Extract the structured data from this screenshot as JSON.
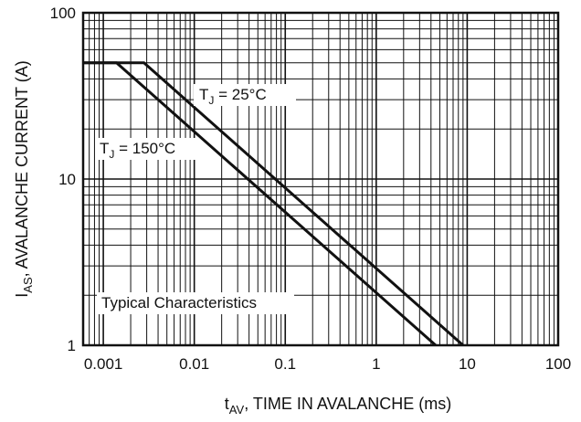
{
  "chart_data": {
    "type": "line",
    "xscale": "log",
    "yscale": "log",
    "xlim": [
      0.0006,
      100
    ],
    "ylim": [
      1,
      100
    ],
    "grid": true,
    "xlabel": {
      "main": "t",
      "sub": "AV",
      "rest": ", TIME IN AVALANCHE (ms)"
    },
    "ylabel": {
      "main": "I",
      "sub": "AS",
      "rest": ", AVALANCHE CURRENT (A)"
    },
    "xticks": [
      {
        "value": 0.001,
        "label": "0.001"
      },
      {
        "value": 0.01,
        "label": "0.01"
      },
      {
        "value": 0.1,
        "label": "0.1"
      },
      {
        "value": 1,
        "label": "1"
      },
      {
        "value": 10,
        "label": "10"
      },
      {
        "value": 100,
        "label": "100"
      }
    ],
    "yticks": [
      {
        "value": 1,
        "label": "1"
      },
      {
        "value": 10,
        "label": "10"
      },
      {
        "value": 100,
        "label": "100"
      }
    ],
    "series": [
      {
        "name": "TJ = 25°C",
        "x": [
          0.0006,
          0.0028,
          9
        ],
        "y": [
          50,
          50,
          1
        ]
      },
      {
        "name": "TJ = 150°C",
        "x": [
          0.0006,
          0.0014,
          4.5
        ],
        "y": [
          50,
          50,
          1
        ]
      }
    ],
    "annotations": [
      {
        "id": "tj25",
        "main": "T",
        "sub": "J",
        "rest": " = 25°C"
      },
      {
        "id": "tj150",
        "main": "T",
        "sub": "J",
        "rest": " = 150°C"
      },
      {
        "id": "typical",
        "text": "Typical Characteristics"
      }
    ]
  }
}
